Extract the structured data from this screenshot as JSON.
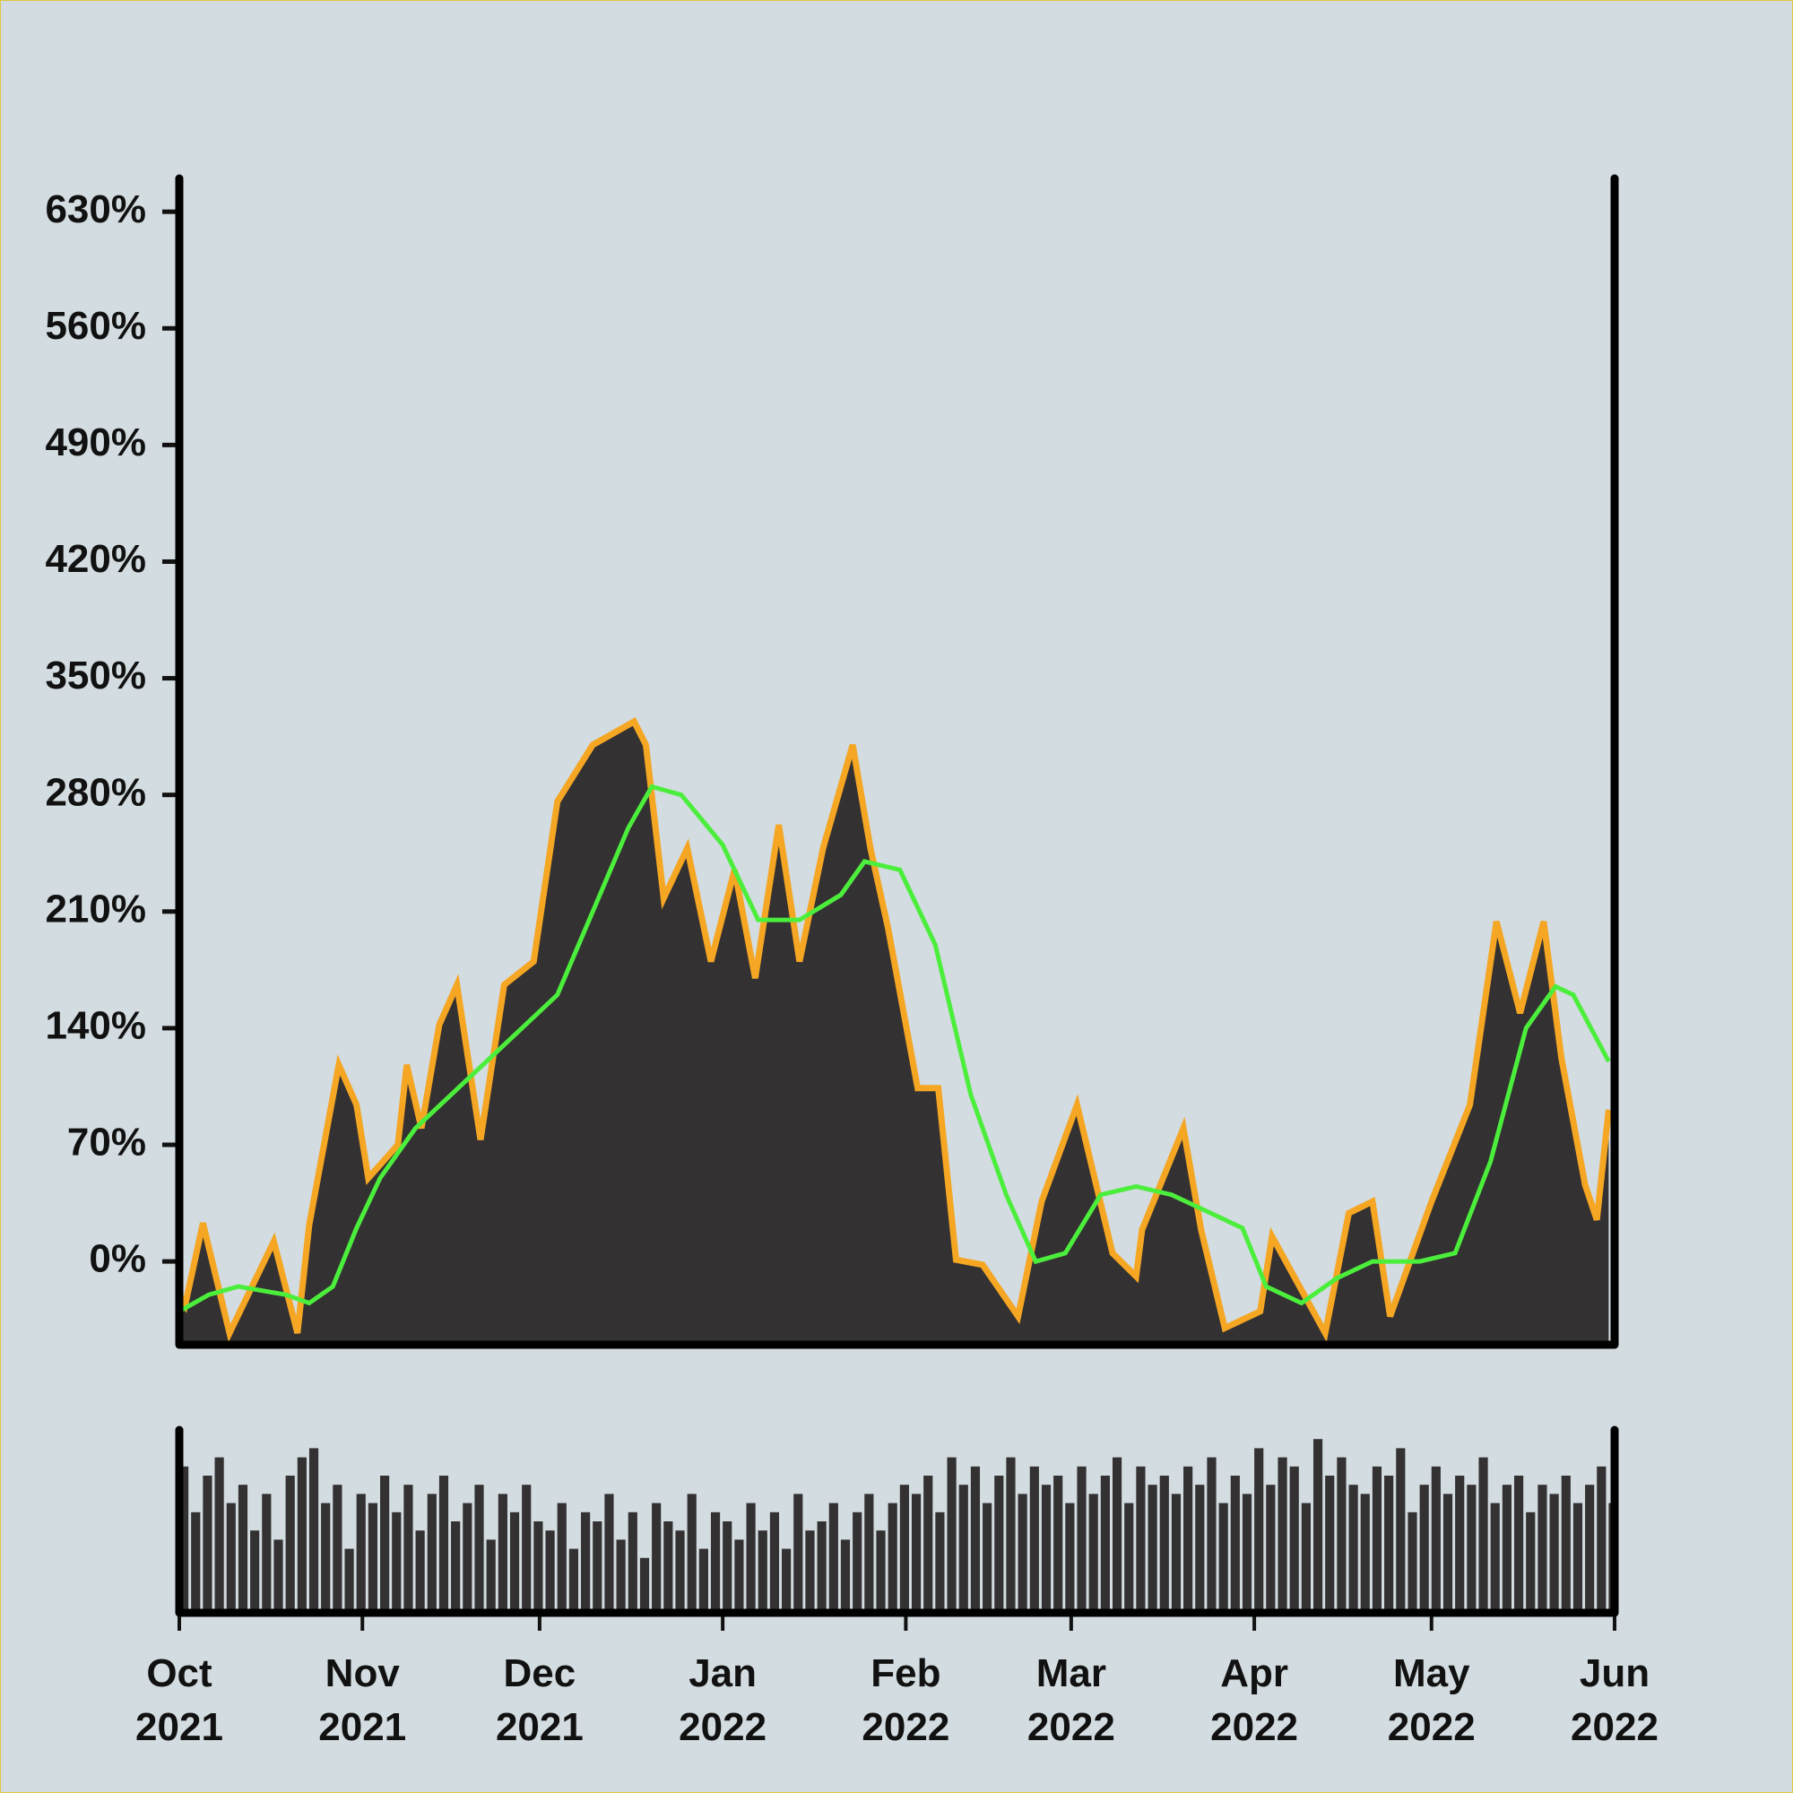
{
  "chart_data": [
    {
      "type": "area",
      "xlim": [
        0,
        243
      ],
      "ylim": [
        -50,
        650
      ],
      "yticks": [
        {
          "value": 0,
          "label": "0%"
        },
        {
          "value": 70,
          "label": "70%"
        },
        {
          "value": 140,
          "label": "140%"
        },
        {
          "value": 210,
          "label": "210%"
        },
        {
          "value": 280,
          "label": "280%"
        },
        {
          "value": 350,
          "label": "350%"
        },
        {
          "value": 420,
          "label": "420%"
        },
        {
          "value": 490,
          "label": "490%"
        },
        {
          "value": 560,
          "label": "560%"
        },
        {
          "value": 630,
          "label": "630%"
        }
      ],
      "series": [
        {
          "kind": "area",
          "color": "#f5a623",
          "fill": "#333132",
          "x": [
            0,
            1,
            4,
            8.5,
            16,
            20,
            22,
            27,
            30,
            32,
            37,
            38.5,
            41,
            44,
            47,
            51,
            55,
            60,
            64,
            70,
            77,
            79,
            82,
            86,
            90,
            94,
            97.5,
            101.5,
            105,
            109,
            114,
            117,
            120,
            125,
            128.5,
            131.5,
            136,
            142,
            146,
            152,
            158,
            162,
            163,
            170,
            173,
            177,
            183,
            185,
            194,
            198,
            202,
            205,
            212,
            218.5,
            223,
            227,
            231,
            234,
            238,
            240,
            242
          ],
          "values": [
            -20,
            -26,
            23,
            -43,
            12,
            -43,
            22,
            118,
            94,
            50,
            70,
            118,
            80,
            142,
            166,
            73,
            166,
            180,
            276,
            310,
            324,
            310,
            218,
            248,
            180,
            235,
            170,
            262,
            180,
            248,
            310,
            248,
            200,
            104,
            104,
            1,
            -2,
            -33,
            36,
            94,
            5,
            -9,
            19,
            80,
            19,
            -40,
            -30,
            15,
            -43,
            29,
            36,
            -33,
            36,
            94,
            204,
            149,
            204,
            122,
            46,
            25,
            91
          ]
        },
        {
          "kind": "line",
          "color": "#4cee3c",
          "x": [
            0,
            5,
            10,
            18,
            22,
            26,
            30,
            34,
            40,
            46,
            52,
            58,
            64,
            70,
            76,
            80,
            85,
            92,
            98,
            105,
            112,
            116,
            122,
            128,
            134,
            140,
            145,
            150,
            156,
            162,
            168,
            174,
            180,
            184,
            190,
            196,
            202,
            210,
            216,
            222,
            228,
            233,
            236,
            242
          ],
          "values": [
            -30,
            -20,
            -15,
            -20,
            -25,
            -15,
            20,
            50,
            80,
            100,
            120,
            140,
            160,
            210,
            260,
            285,
            280,
            250,
            205,
            205,
            220,
            240,
            235,
            190,
            100,
            40,
            0,
            5,
            40,
            45,
            40,
            30,
            20,
            -15,
            -25,
            -10,
            0,
            0,
            5,
            60,
            140,
            165,
            160,
            120
          ]
        }
      ]
    },
    {
      "type": "bar",
      "color": "#333132",
      "xlim": [
        0,
        243
      ],
      "ylim": [
        0,
        100
      ],
      "xticks": [
        {
          "value": 0,
          "label": "Oct 2021"
        },
        {
          "value": 31,
          "label": "Nov 2021"
        },
        {
          "value": 61,
          "label": "Dec 2021"
        },
        {
          "value": 92,
          "label": "Jan 2022"
        },
        {
          "value": 123,
          "label": "Feb 2022"
        },
        {
          "value": 151,
          "label": "Mar 2022"
        },
        {
          "value": 182,
          "label": "Apr 2022"
        },
        {
          "value": 212,
          "label": "May 2022"
        },
        {
          "value": 243,
          "label": "Jun 2022"
        }
      ],
      "x": [
        0,
        2,
        4,
        6,
        8,
        10,
        12,
        14,
        16,
        18,
        20,
        22,
        24,
        26,
        28,
        30,
        32,
        34,
        36,
        38,
        40,
        42,
        44,
        46,
        48,
        50,
        52,
        54,
        56,
        58,
        60,
        62,
        64,
        66,
        68,
        70,
        72,
        74,
        76,
        78,
        80,
        82,
        84,
        86,
        88,
        90,
        92,
        94,
        96,
        98,
        100,
        102,
        104,
        106,
        108,
        110,
        112,
        114,
        116,
        118,
        120,
        122,
        124,
        126,
        128,
        130,
        132,
        134,
        136,
        138,
        140,
        142,
        144,
        146,
        148,
        150,
        152,
        154,
        156,
        158,
        160,
        162,
        164,
        166,
        168,
        170,
        172,
        174,
        176,
        178,
        180,
        182,
        184,
        186,
        188,
        190,
        192,
        194,
        196,
        198,
        200,
        202,
        204,
        206,
        208,
        210,
        212,
        214,
        216,
        218,
        220,
        222,
        224,
        226,
        228,
        230,
        232,
        234,
        236,
        238,
        240,
        242
      ],
      "values": [
        80,
        55,
        75,
        85,
        60,
        70,
        45,
        65,
        40,
        75,
        85,
        90,
        60,
        70,
        35,
        65,
        60,
        75,
        55,
        70,
        45,
        65,
        75,
        50,
        60,
        70,
        40,
        65,
        55,
        70,
        50,
        45,
        60,
        35,
        55,
        50,
        65,
        40,
        55,
        30,
        60,
        50,
        45,
        65,
        35,
        55,
        50,
        40,
        60,
        45,
        55,
        35,
        65,
        45,
        50,
        60,
        40,
        55,
        65,
        45,
        60,
        70,
        65,
        75,
        55,
        85,
        70,
        80,
        60,
        75,
        85,
        65,
        80,
        70,
        75,
        60,
        80,
        65,
        75,
        85,
        60,
        80,
        70,
        75,
        65,
        80,
        70,
        85,
        60,
        75,
        65,
        90,
        70,
        85,
        80,
        60,
        95,
        75,
        85,
        70,
        65,
        80,
        75,
        90,
        55,
        70,
        80,
        65,
        75,
        70,
        85,
        60,
        70,
        75,
        55,
        70,
        65,
        75,
        60,
        70,
        80,
        60
      ]
    }
  ]
}
